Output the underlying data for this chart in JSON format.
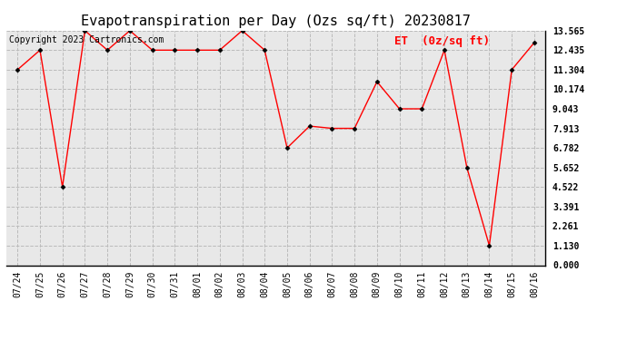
{
  "title": "Evapotranspiration per Day (Ozs sq/ft) 20230817",
  "legend_label": "ET  (0z/sq ft)",
  "copyright": "Copyright 2023 Cartronics.com",
  "x_labels": [
    "07/24",
    "07/25",
    "07/26",
    "07/27",
    "07/28",
    "07/29",
    "07/30",
    "07/31",
    "08/01",
    "08/02",
    "08/03",
    "08/04",
    "08/05",
    "08/06",
    "08/07",
    "08/08",
    "08/09",
    "08/10",
    "08/11",
    "08/12",
    "08/13",
    "08/14",
    "08/15",
    "08/16"
  ],
  "et_data": [
    11.304,
    12.435,
    4.522,
    13.565,
    12.435,
    13.565,
    12.435,
    12.435,
    12.435,
    12.435,
    13.565,
    12.435,
    6.782,
    8.043,
    7.913,
    7.913,
    10.609,
    9.043,
    9.043,
    12.435,
    5.652,
    1.13,
    11.304,
    12.87
  ],
  "y_ticks": [
    0.0,
    1.13,
    2.261,
    3.391,
    4.522,
    5.652,
    6.782,
    7.913,
    9.043,
    10.174,
    11.304,
    12.435,
    13.565
  ],
  "ylim": [
    0.0,
    13.565
  ],
  "line_color": "red",
  "marker_color": "black",
  "grid_color": "#bbbbbb",
  "bg_color": "#e8e8e8",
  "title_fontsize": 11,
  "copyright_fontsize": 7,
  "legend_fontsize": 9,
  "tick_fontsize": 7,
  "legend_color": "red"
}
